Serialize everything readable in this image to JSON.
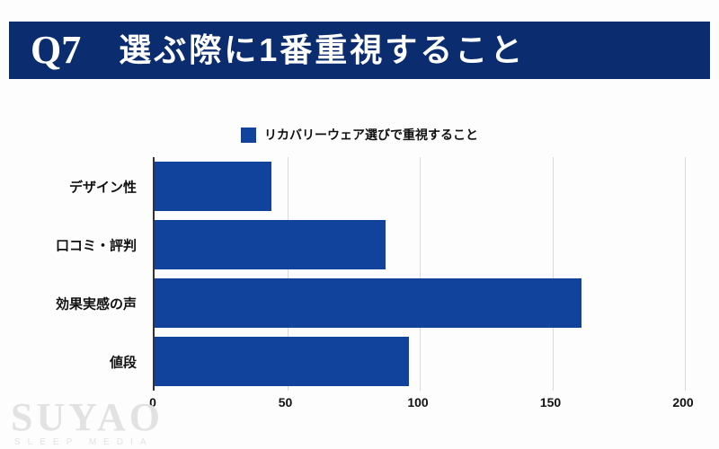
{
  "banner": {
    "q_label": "Q7",
    "title": "選ぶ際に1番重視すること"
  },
  "legend": {
    "label": "リカバリーウェア選びで重視すること"
  },
  "watermark": {
    "brand": "SUYAO",
    "sub": "SLEEP MEDIA"
  },
  "colors": {
    "banner_bg": "#0b2d6f",
    "bar": "#11439c",
    "gridline": "#d9d9d9"
  },
  "chart_data": {
    "type": "bar",
    "orientation": "horizontal",
    "title": "リカバリーウェア選びで重視すること",
    "categories": [
      "デザイン性",
      "口コミ・評判",
      "効果実感の声",
      "値段"
    ],
    "values": [
      44,
      87,
      161,
      96
    ],
    "xlabel": "",
    "ylabel": "",
    "xlim": [
      0,
      200
    ],
    "xticks": [
      0,
      50,
      100,
      150,
      200
    ],
    "grid": true,
    "legend_position": "top-center"
  }
}
